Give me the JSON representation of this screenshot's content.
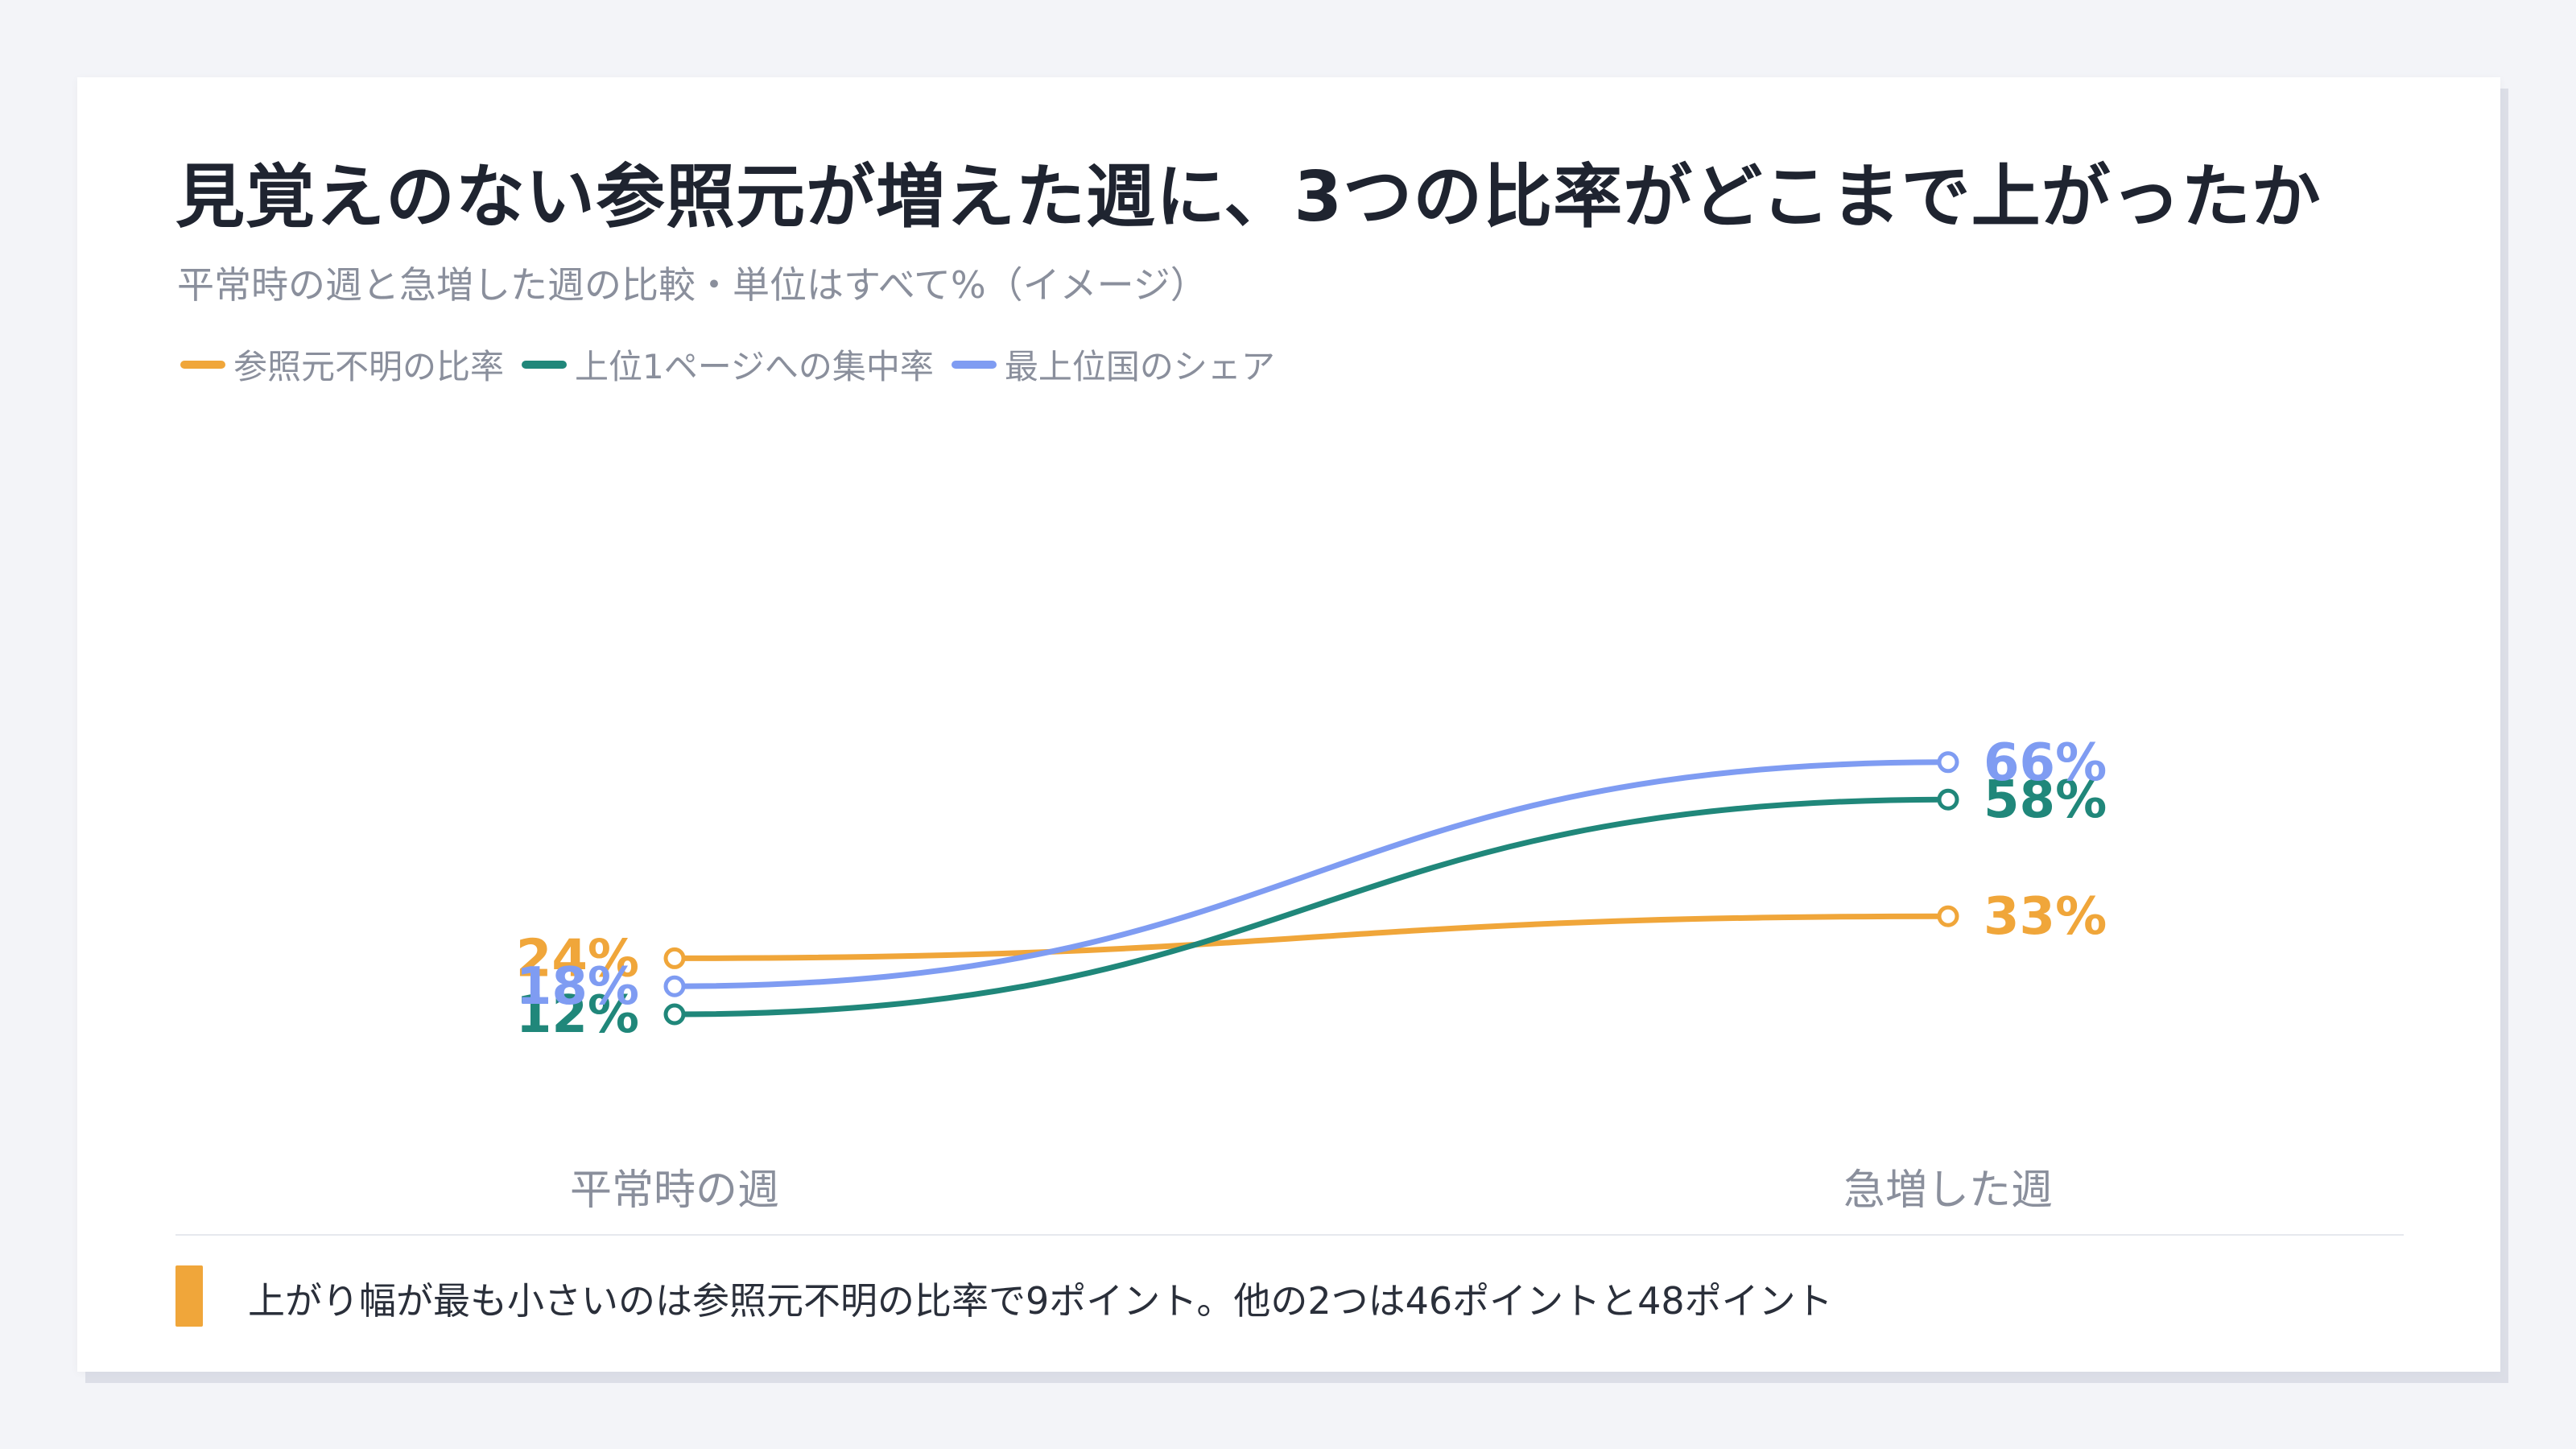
{
  "title": "見覚えのない参照元が増えた週に、3つの比率がどこまで上がったか",
  "subtitle": "平常時の週と急増した週の比較・単位はすべて%（イメージ）",
  "legend": [
    {
      "label": "参照元不明の比率",
      "color": "#f0a63a"
    },
    {
      "label": "上位1ページへの集中率",
      "color": "#20877a"
    },
    {
      "label": "最上位国のシェア",
      "color": "#7f9cf2"
    }
  ],
  "note": "上がり幅が最も小さいのは参照元不明の比率で9ポイント。他の2つは46ポイントと48ポイント",
  "note_color": "#f0a63a",
  "chart_data": {
    "type": "line",
    "title": "見覚えのない参照元が増えた週に、3つの比率がどこまで上がったか",
    "subtitle": "平常時の週と急増した週の比較・単位はすべて%（イメージ）",
    "categories": [
      "平常時の週",
      "急増した週"
    ],
    "unit": "%",
    "series": [
      {
        "name": "参照元不明の比率",
        "values": [
          24,
          33
        ],
        "color": "#f0a63a"
      },
      {
        "name": "上位1ページへの集中率",
        "values": [
          12,
          58
        ],
        "color": "#20877a"
      },
      {
        "name": "最上位国のシェア",
        "values": [
          18,
          66
        ],
        "color": "#7f9cf2"
      }
    ],
    "data_labels": [
      [
        "24%",
        "33%"
      ],
      [
        "12%",
        "58%"
      ],
      [
        "18%",
        "66%"
      ]
    ],
    "grid": false,
    "legend_position": "top-left"
  }
}
